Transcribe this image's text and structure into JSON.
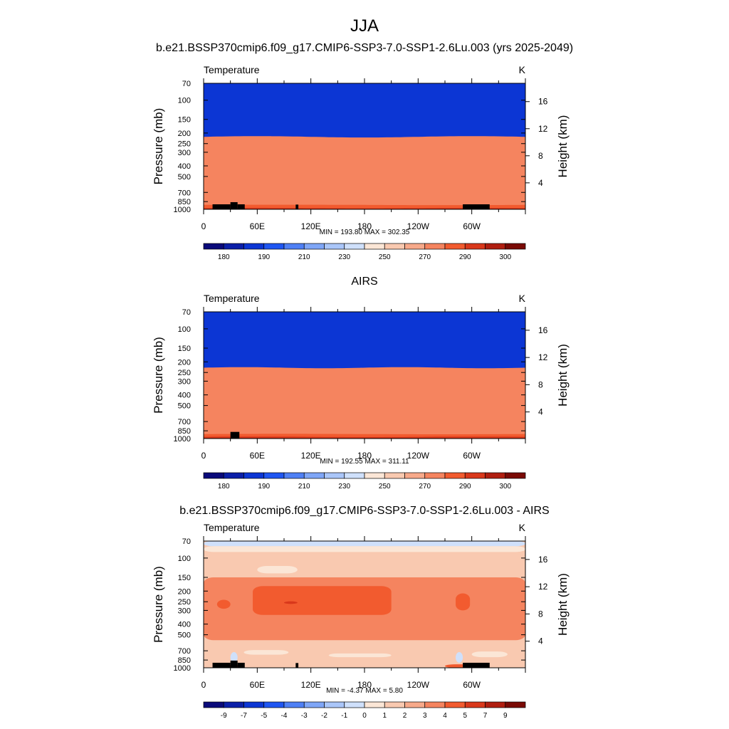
{
  "figure": {
    "title": "JJA",
    "colors": {
      "palette": [
        "#0a0a7a",
        "#0b1fa8",
        "#0c36d4",
        "#1f56f2",
        "#4f80f5",
        "#7fa6f7",
        "#aac6f9",
        "#cfe0fb",
        "#fbe6d6",
        "#f9c9b0",
        "#f7a98a",
        "#f5845f",
        "#f25b2f",
        "#d9381b",
        "#b01e10",
        "#7a0a05"
      ],
      "highlight": "#ffffff",
      "ink": "#000000"
    },
    "yticks": [
      "70",
      "100",
      "150",
      "200",
      "250",
      "300",
      "400",
      "500",
      "700",
      "850",
      "1000"
    ],
    "height_ticks": [
      "16",
      "12",
      "8",
      "4"
    ],
    "xticks": [
      "0",
      "60E",
      "120E",
      "180",
      "120W",
      "60W"
    ],
    "ylabel": "Pressure (mb)",
    "ylabel_right": "Height (km)",
    "units": "K"
  },
  "panels": [
    {
      "subtitle": "b.e21.BSSP370cmip6.f09_g17.CMIP6-SSP3-7.0-SSP1-2.6Lu.003 (yrs 2025-2049)",
      "variable": "Temperature",
      "stats": "MIN = 193.80  MAX = 302.35",
      "colorbar_labels": [
        "180",
        "190",
        "210",
        "230",
        "250",
        "270",
        "290",
        "300"
      ]
    },
    {
      "subtitle": "AIRS",
      "variable": "Temperature",
      "stats": "MIN = 192.55  MAX = 311.11",
      "colorbar_labels": [
        "180",
        "190",
        "210",
        "230",
        "250",
        "270",
        "290",
        "300"
      ]
    },
    {
      "subtitle": "b.e21.BSSP370cmip6.f09_g17.CMIP6-SSP3-7.0-SSP1-2.6Lu.003 - AIRS",
      "variable": "Temperature",
      "stats": "MIN =  -4.37  MAX =   5.80",
      "colorbar_labels": [
        "-9",
        "-7",
        "-5",
        "-4",
        "-3",
        "-2",
        "-1",
        "0",
        "1",
        "2",
        "3",
        "4",
        "5",
        "7",
        "9"
      ]
    }
  ],
  "chart_data": [
    {
      "type": "heatmap",
      "title": "b.e21.BSSP370cmip6.f09_g17.CMIP6-SSP3-7.0-SSP1-2.6Lu.003 (yrs 2025-2049)",
      "variable": "Temperature",
      "units": "K",
      "xlabel": "",
      "ylabel": "Pressure (mb)",
      "ylabel_right": "Height (km)",
      "xlim": [
        0,
        360
      ],
      "ylim": [
        1000,
        70
      ],
      "y_scale": "log",
      "grid": false,
      "min": 193.8,
      "max": 302.35,
      "pressure_levels": [
        70,
        100,
        150,
        200,
        250,
        300,
        400,
        500,
        700,
        850,
        1000
      ],
      "zonal_mean_temperature": [
        197,
        201,
        210,
        219,
        227,
        233,
        246,
        257,
        273,
        283,
        292
      ],
      "contour_levels": [
        180,
        185,
        190,
        200,
        210,
        220,
        230,
        240,
        250,
        260,
        270,
        280,
        290,
        295,
        300
      ],
      "bands": [
        {
          "lvl": 7,
          "top": 195
        },
        {
          "lvl": 6,
          "top": 177
        },
        {
          "lvl": 5,
          "top": 163,
          "amp": 1.6,
          "period": 120
        },
        {
          "lvl": 4,
          "top": 145,
          "amp": 2.2,
          "period": 180
        },
        {
          "lvl": 3,
          "top": 125,
          "amp": 1.5,
          "period": 180
        },
        {
          "lvl": 2,
          "top": 108,
          "amp": 1.0,
          "period": 120
        }
      ],
      "surface_bands": [
        {
          "lvl": 12,
          "top": 74,
          "amp": 3,
          "period": 180
        },
        {
          "lvl": 13,
          "top": 28,
          "amp": 3,
          "period": 120
        },
        {
          "lvl": 14,
          "top": 13,
          "amp": 2,
          "period": 90
        }
      ],
      "topography": [
        [
          10,
          30,
          900
        ],
        [
          30,
          38,
          860
        ],
        [
          38,
          46,
          900
        ],
        [
          103,
          106,
          905
        ],
        [
          290,
          320,
          900
        ]
      ]
    },
    {
      "type": "heatmap",
      "title": "AIRS",
      "variable": "Temperature",
      "units": "K",
      "xlabel": "",
      "ylabel": "Pressure (mb)",
      "ylabel_right": "Height (km)",
      "xlim": [
        0,
        360
      ],
      "ylim": [
        1000,
        70
      ],
      "y_scale": "log",
      "grid": false,
      "min": 192.55,
      "max": 311.11,
      "pressure_levels": [
        70,
        100,
        150,
        200,
        250,
        300,
        400,
        500,
        700,
        850,
        1000
      ],
      "zonal_mean_temperature": [
        199,
        203,
        212,
        221,
        228,
        236,
        249,
        261,
        276,
        287,
        297
      ],
      "contour_levels": [
        180,
        185,
        190,
        200,
        210,
        220,
        230,
        240,
        250,
        260,
        270,
        280,
        290,
        295,
        300
      ],
      "bands": [
        {
          "lvl": 7,
          "top": 195
        },
        {
          "lvl": 6,
          "top": 175
        },
        {
          "lvl": 5,
          "top": 158,
          "amp": 2.0,
          "period": 180
        },
        {
          "lvl": 4,
          "top": 140,
          "amp": 2.5,
          "period": 180
        },
        {
          "lvl": 3,
          "top": 120,
          "amp": 1.2,
          "period": 120
        },
        {
          "lvl": 2,
          "top": 105,
          "amp": 0.8,
          "period": 90
        }
      ],
      "surface_bands": [
        {
          "lvl": 12,
          "top": 75,
          "amp": 3,
          "period": 180
        },
        {
          "lvl": 13,
          "top": 35,
          "amp": 4,
          "period": 120
        },
        {
          "lvl": 14,
          "top": 15,
          "amp": 3,
          "period": 90
        },
        {
          "lvl": 15,
          "top": 5,
          "amp": 1,
          "period": 60
        }
      ],
      "topography": [
        [
          30,
          40,
          870
        ]
      ]
    },
    {
      "type": "heatmap",
      "title": "b.e21.BSSP370cmip6.f09_g17.CMIP6-SSP3-7.0-SSP1-2.6Lu.003 - AIRS",
      "variable": "Temperature",
      "units": "K",
      "xlabel": "",
      "ylabel": "Pressure (mb)",
      "ylabel_right": "Height (km)",
      "xlim": [
        0,
        360
      ],
      "ylim": [
        1000,
        70
      ],
      "y_scale": "log",
      "grid": false,
      "min": -4.37,
      "max": 5.8,
      "pressure_levels": [
        70,
        100,
        150,
        200,
        250,
        300,
        400,
        500,
        700,
        850,
        1000
      ],
      "zonal_mean_difference": [
        -2,
        -1,
        0.5,
        3,
        3.5,
        3.5,
        2,
        1.5,
        0.5,
        0.5,
        -0.5
      ],
      "contour_levels": [
        -9,
        -7,
        -5,
        -4,
        -3,
        -2,
        -1,
        0,
        1,
        2,
        3,
        4,
        5,
        7,
        9
      ],
      "base_level": 9,
      "regions": [
        {
          "lvl": 7,
          "x": [
            0,
            360
          ],
          "p": [
            70,
            78
          ],
          "c": "#cfe0fb"
        },
        {
          "lvl": 8,
          "x": [
            0,
            360
          ],
          "p": [
            78,
            88
          ],
          "c": "#fbe6d6"
        },
        {
          "lvl": 10,
          "x": [
            0,
            360
          ],
          "p": [
            150,
            560
          ],
          "c": "#f5845f"
        },
        {
          "lvl": 11,
          "x": [
            55,
            210
          ],
          "p": [
            180,
            330
          ],
          "c": "#f25b2f"
        },
        {
          "lvl": 11,
          "x": [
            15,
            30
          ],
          "p": [
            240,
            290
          ],
          "c": "#f25b2f"
        },
        {
          "lvl": 11,
          "x": [
            282,
            298
          ],
          "p": [
            210,
            300
          ],
          "c": "#f25b2f"
        },
        {
          "lvl": 11,
          "x": [
            90,
            105
          ],
          "p": [
            248,
            262
          ],
          "c": "#d9381b"
        },
        {
          "lvl": 8,
          "x": [
            60,
            105
          ],
          "p": [
            118,
            138
          ],
          "c": "#fbe6d6"
        },
        {
          "lvl": 8,
          "x": [
            45,
            95
          ],
          "p": [
            690,
            760
          ],
          "c": "#fbe6d6"
        },
        {
          "lvl": 8,
          "x": [
            140,
            210
          ],
          "p": [
            740,
            800
          ],
          "c": "#fbe6d6"
        },
        {
          "lvl": 8,
          "x": [
            300,
            340
          ],
          "p": [
            710,
            800
          ],
          "c": "#fbe6d6"
        },
        {
          "lvl": 9,
          "x": [
            80,
            200
          ],
          "p": [
            860,
            950
          ],
          "c": "#f9c9b0"
        },
        {
          "lvl": 7,
          "x": [
            30,
            38
          ],
          "p": [
            720,
            900
          ],
          "c": "#cfe0fb"
        },
        {
          "lvl": 7,
          "x": [
            282,
            290
          ],
          "p": [
            720,
            900
          ],
          "c": "#cfe0fb"
        },
        {
          "lvl": 12,
          "x": [
            270,
            320
          ],
          "p": [
            930,
            1000
          ],
          "c": "#f25b2f"
        },
        {
          "lvl": 12,
          "x": [
            20,
            45
          ],
          "p": [
            940,
            1000
          ],
          "c": "#d9381b"
        }
      ],
      "topography": [
        [
          10,
          30,
          900
        ],
        [
          30,
          38,
          860
        ],
        [
          38,
          46,
          900
        ],
        [
          103,
          106,
          905
        ],
        [
          290,
          320,
          900
        ]
      ]
    }
  ]
}
